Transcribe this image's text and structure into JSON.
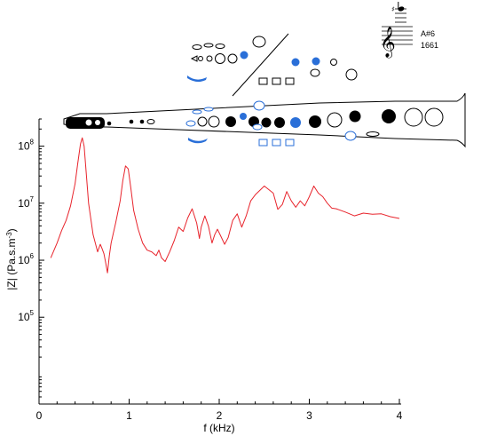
{
  "chart_data": {
    "type": "line",
    "xlabel": "f (kHz)",
    "ylabel": "|Z| (Pa.s.m",
    "ylabel_exp": "-3",
    "ylabel_close": ")",
    "xlim": [
      0,
      4
    ],
    "ylim": [
      3000,
      300000000
    ],
    "yscale": "log",
    "grid": false,
    "x_ticks": [
      0,
      1,
      2,
      3,
      4
    ],
    "x_tick_labels": [
      "0",
      "1",
      "2",
      "3",
      "4"
    ],
    "y_ticks": [
      100000,
      1000000,
      10000000,
      100000000
    ],
    "y_tick_labels": [
      {
        "base": "10",
        "exp": "5"
      },
      {
        "base": "10",
        "exp": "6"
      },
      {
        "base": "10",
        "exp": "7"
      },
      {
        "base": "10",
        "exp": "8"
      }
    ],
    "series": [
      {
        "color": "#e8242c",
        "x": [
          0.13,
          0.15,
          0.2,
          0.25,
          0.3,
          0.35,
          0.4,
          0.43,
          0.46,
          0.48,
          0.5,
          0.52,
          0.55,
          0.6,
          0.65,
          0.68,
          0.7,
          0.72,
          0.74,
          0.76,
          0.78,
          0.8,
          0.85,
          0.9,
          0.93,
          0.96,
          0.99,
          1.02,
          1.05,
          1.1,
          1.15,
          1.2,
          1.25,
          1.3,
          1.33,
          1.36,
          1.4,
          1.45,
          1.5,
          1.55,
          1.6,
          1.65,
          1.7,
          1.75,
          1.78,
          1.8,
          1.84,
          1.88,
          1.92,
          1.95,
          1.98,
          2.02,
          2.06,
          2.1,
          2.15,
          2.2,
          2.25,
          2.3,
          2.35,
          2.4,
          2.5,
          2.6,
          2.65,
          2.7,
          2.75,
          2.8,
          2.85,
          2.9,
          2.95,
          3.0,
          3.05,
          3.1,
          3.15,
          3.2,
          3.25,
          3.3,
          3.4,
          3.5,
          3.6,
          3.7,
          3.8,
          3.9,
          4.0
        ],
        "y": [
          1100000,
          1300000,
          2000000,
          3300000,
          5000000,
          9000000,
          22000000,
          50000000,
          110000000,
          140000000,
          100000000,
          40000000,
          10000000,
          2800000,
          1400000,
          1900000,
          1600000,
          1300000,
          900000,
          600000,
          1200000,
          2000000,
          4500000,
          11000000,
          25000000,
          45000000,
          40000000,
          18000000,
          7500000,
          3500000,
          2000000,
          1500000,
          1400000,
          1200000,
          1500000,
          1100000,
          950000,
          1400000,
          2200000,
          3800000,
          3200000,
          5500000,
          8000000,
          4500000,
          2400000,
          3800000,
          6000000,
          4000000,
          2000000,
          2800000,
          3500000,
          2600000,
          1900000,
          2500000,
          5000000,
          6500000,
          3800000,
          6000000,
          11000000,
          14000000,
          20000000,
          15000000,
          7800000,
          9500000,
          16000000,
          11000000,
          8500000,
          11000000,
          9000000,
          13000000,
          20000000,
          15000000,
          13000000,
          10000000,
          8200000,
          8000000,
          7000000,
          6000000,
          6700000,
          6400000,
          6500000,
          5800000,
          5400000
        ]
      }
    ],
    "annotation": {
      "note_name": "A#6",
      "note_freq": "1661"
    }
  }
}
